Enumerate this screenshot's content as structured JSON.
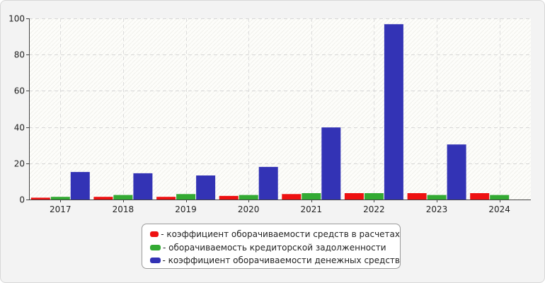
{
  "chart_data": {
    "type": "bar",
    "categories": [
      "2017",
      "2018",
      "2019",
      "2020",
      "2021",
      "2022",
      "2023",
      "2024"
    ],
    "series": [
      {
        "name": "- коэффициент оборачиваемости средств в расчетах",
        "color": "#ee1111",
        "values": [
          1.0,
          1.5,
          1.5,
          2.0,
          3.0,
          3.5,
          3.5,
          3.5
        ]
      },
      {
        "name": "- оборачиваемость кредиторской задолженности",
        "color": "#33aa33",
        "values": [
          1.5,
          2.5,
          3.0,
          2.5,
          3.5,
          3.5,
          2.5,
          2.5
        ]
      },
      {
        "name": "- коэффициент оборачиваемости денежных средств",
        "color": "#3333b5",
        "values": [
          15.2,
          14.5,
          13.3,
          18.0,
          39.8,
          96.8,
          30.4,
          0
        ]
      }
    ],
    "yticks": [
      0,
      20,
      40,
      60,
      80,
      100
    ],
    "ylim": [
      0,
      100
    ],
    "grid": true,
    "legend_position": "bottom"
  }
}
